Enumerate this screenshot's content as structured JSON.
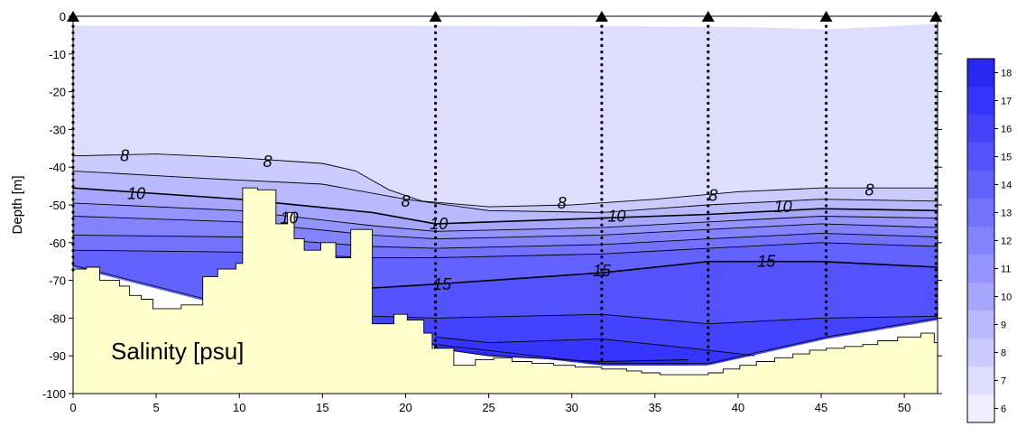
{
  "chart_data": {
    "type": "contour",
    "title": "",
    "panel_label": "Salinity [psu]",
    "xlabel": "",
    "ylabel": "Depth [m]",
    "xlim": [
      0,
      52
    ],
    "ylim": [
      -100,
      0
    ],
    "x_ticks": [
      0,
      5,
      10,
      15,
      20,
      25,
      30,
      35,
      40,
      45,
      50
    ],
    "y_ticks": [
      0,
      -10,
      -20,
      -30,
      -40,
      -50,
      -60,
      -70,
      -80,
      -90,
      -100
    ],
    "colors": {
      "bottom": "#FFFFCC",
      "outline": "#000000"
    },
    "colorbar": {
      "levels": [
        6,
        7,
        8,
        9,
        10,
        11,
        12,
        13,
        14,
        15,
        16,
        17,
        18
      ],
      "labels": [
        "6",
        "7",
        "8",
        "9",
        "10",
        "11",
        "12",
        "13",
        "14",
        "15",
        "16",
        "17",
        "18"
      ],
      "band_colors": [
        "#EEEEFF",
        "#DDDDFF",
        "#CBCBFF",
        "#B9B9FF",
        "#A6A6FF",
        "#9494FF",
        "#8383FF",
        "#7272FF",
        "#6262FF",
        "#5252FF",
        "#4343FF",
        "#3535FF",
        "#2828F0"
      ]
    },
    "stations": [
      {
        "x": 0,
        "bottom_depth": -68
      },
      {
        "x": 21.8,
        "bottom_depth": -89
      },
      {
        "x": 31.8,
        "bottom_depth": -92
      },
      {
        "x": 38.2,
        "bottom_depth": -92
      },
      {
        "x": 45.3,
        "bottom_depth": -85
      },
      {
        "x": 51.9,
        "bottom_depth": -80
      }
    ],
    "data_top": [
      [
        0,
        -2.5
      ],
      [
        10,
        -2.5
      ],
      [
        20,
        -2.5
      ],
      [
        30,
        -2.6
      ],
      [
        40,
        -2.8
      ],
      [
        45.3,
        -3.5
      ],
      [
        52,
        -2
      ]
    ],
    "data_lower_boundary": [
      [
        0,
        -66
      ],
      [
        8,
        -75
      ],
      [
        10,
        -76
      ],
      [
        21.8,
        -87
      ],
      [
        31.8,
        -92
      ],
      [
        38.2,
        -92
      ],
      [
        45.3,
        -85
      ],
      [
        52,
        -80
      ]
    ],
    "isohalines": [
      {
        "level": 8,
        "points": [
          [
            0,
            -37
          ],
          [
            5,
            -36.5
          ],
          [
            10,
            -37.5
          ],
          [
            15,
            -39
          ],
          [
            17,
            -41
          ],
          [
            19,
            -46
          ],
          [
            21,
            -49
          ],
          [
            25,
            -50.5
          ],
          [
            30,
            -50
          ],
          [
            35,
            -48.5
          ],
          [
            40,
            -46.5
          ],
          [
            45,
            -45.5
          ],
          [
            52,
            -45.5
          ]
        ]
      },
      {
        "level": 9,
        "points": [
          [
            0,
            -41
          ],
          [
            8,
            -43
          ],
          [
            15,
            -44.5
          ],
          [
            20,
            -48.5
          ],
          [
            25,
            -51.5
          ],
          [
            31.8,
            -52
          ],
          [
            38.2,
            -50
          ],
          [
            45,
            -48.5
          ],
          [
            52,
            -49
          ]
        ]
      },
      {
        "level": 10,
        "points": [
          [
            0,
            -45.5
          ],
          [
            10,
            -48.5
          ],
          [
            18,
            -52
          ],
          [
            21.8,
            -55
          ],
          [
            31.8,
            -53.5
          ],
          [
            38.2,
            -52.5
          ],
          [
            45,
            -51
          ],
          [
            52,
            -51.5
          ]
        ]
      },
      {
        "level": 11,
        "points": [
          [
            0,
            -49.5
          ],
          [
            10,
            -51.5
          ],
          [
            18,
            -55.5
          ],
          [
            21.8,
            -57
          ],
          [
            31.8,
            -56
          ],
          [
            38.2,
            -54.5
          ],
          [
            45,
            -53
          ],
          [
            52,
            -53.5
          ]
        ]
      },
      {
        "level": 12,
        "points": [
          [
            0,
            -53
          ],
          [
            10,
            -54.5
          ],
          [
            18,
            -58
          ],
          [
            21.8,
            -59
          ],
          [
            31.8,
            -58
          ],
          [
            38.2,
            -56.5
          ],
          [
            45,
            -55
          ],
          [
            52,
            -56
          ]
        ]
      },
      {
        "level": 13,
        "points": [
          [
            0,
            -58
          ],
          [
            10,
            -58.5
          ],
          [
            18,
            -61
          ],
          [
            21.8,
            -61.5
          ],
          [
            31.8,
            -60.5
          ],
          [
            38.2,
            -59
          ],
          [
            45,
            -57.5
          ],
          [
            52,
            -58.5
          ]
        ]
      },
      {
        "level": 14,
        "points": [
          [
            0,
            -62
          ],
          [
            10,
            -62.5
          ],
          [
            18,
            -64
          ],
          [
            21.8,
            -64
          ],
          [
            31.8,
            -63
          ],
          [
            38.2,
            -61.5
          ],
          [
            45,
            -60
          ],
          [
            52,
            -61
          ]
        ]
      },
      {
        "level": 15,
        "points": [
          [
            18,
            -72
          ],
          [
            21.8,
            -71
          ],
          [
            31.8,
            -68
          ],
          [
            38.2,
            -65
          ],
          [
            45,
            -65
          ],
          [
            52,
            -66.5
          ]
        ]
      },
      {
        "level": 16,
        "points": [
          [
            18,
            -79.5
          ],
          [
            21.8,
            -80
          ],
          [
            31.8,
            -79
          ],
          [
            38.2,
            -81.5
          ],
          [
            45,
            -80
          ],
          [
            52,
            -79.5
          ]
        ]
      },
      {
        "level": 17,
        "points": [
          [
            21.8,
            -85
          ],
          [
            25,
            -86.5
          ],
          [
            31.8,
            -85.5
          ],
          [
            38.2,
            -88.5
          ],
          [
            41,
            -90
          ]
        ]
      },
      {
        "level": 18,
        "points": [
          [
            21.8,
            -88
          ],
          [
            25,
            -90
          ],
          [
            31.8,
            -91.5
          ],
          [
            37,
            -91
          ]
        ]
      }
    ],
    "contour_labels": [
      {
        "text": "8",
        "x": 3.1,
        "y": -37
      },
      {
        "text": "8",
        "x": 11.7,
        "y": -38.5
      },
      {
        "text": "8",
        "x": 20,
        "y": -49
      },
      {
        "text": "8",
        "x": 29.4,
        "y": -49.5
      },
      {
        "text": "8",
        "x": 38.5,
        "y": -47.5
      },
      {
        "text": "8",
        "x": 47.9,
        "y": -46
      },
      {
        "text": "10",
        "x": 3.8,
        "y": -47
      },
      {
        "text": "10",
        "x": 13,
        "y": -53.5
      },
      {
        "text": "10",
        "x": 22,
        "y": -55
      },
      {
        "text": "10",
        "x": 32.7,
        "y": -53
      },
      {
        "text": "10",
        "x": 42.7,
        "y": -50.5
      },
      {
        "text": "15",
        "x": 22.2,
        "y": -71
      },
      {
        "text": "15",
        "x": 31.8,
        "y": -67.5
      },
      {
        "text": "15",
        "x": 41.7,
        "y": -65
      }
    ],
    "bathymetry": [
      [
        0,
        -67
      ],
      [
        0.8,
        -67
      ],
      [
        0.8,
        -66.5
      ],
      [
        1.6,
        -66.5
      ],
      [
        1.6,
        -70
      ],
      [
        2.8,
        -70
      ],
      [
        2.8,
        -71.5
      ],
      [
        3.4,
        -71.5
      ],
      [
        3.4,
        -74
      ],
      [
        4.1,
        -74
      ],
      [
        4.1,
        -75
      ],
      [
        4.8,
        -75
      ],
      [
        4.8,
        -77.5
      ],
      [
        6.5,
        -77.5
      ],
      [
        6.5,
        -76.5
      ],
      [
        7.8,
        -76.5
      ],
      [
        7.8,
        -69
      ],
      [
        8.7,
        -69
      ],
      [
        8.7,
        -67
      ],
      [
        9.8,
        -67
      ],
      [
        9.8,
        -65.5
      ],
      [
        10.2,
        -65.5
      ],
      [
        10.2,
        -45.5
      ],
      [
        11.1,
        -45.5
      ],
      [
        11.1,
        -46
      ],
      [
        12.2,
        -46
      ],
      [
        12.2,
        -55
      ],
      [
        12.9,
        -55
      ],
      [
        12.9,
        -52
      ],
      [
        13.3,
        -52
      ],
      [
        13.3,
        -59
      ],
      [
        13.9,
        -59
      ],
      [
        13.9,
        -62
      ],
      [
        14.9,
        -62
      ],
      [
        14.9,
        -60
      ],
      [
        15.8,
        -60
      ],
      [
        15.8,
        -64
      ],
      [
        16.7,
        -64
      ],
      [
        16.7,
        -56.5
      ],
      [
        18,
        -56.5
      ],
      [
        18,
        -81.5
      ],
      [
        19.3,
        -81.5
      ],
      [
        19.3,
        -79
      ],
      [
        20.1,
        -79
      ],
      [
        20.1,
        -80.5
      ],
      [
        21.1,
        -80.5
      ],
      [
        21.1,
        -84
      ],
      [
        21.6,
        -84
      ],
      [
        21.6,
        -88
      ],
      [
        22.9,
        -88
      ],
      [
        22.9,
        -92.5
      ],
      [
        24.2,
        -92.5
      ],
      [
        24.2,
        -91
      ],
      [
        25.3,
        -91
      ],
      [
        25.3,
        -90.5
      ],
      [
        26.4,
        -90.5
      ],
      [
        26.4,
        -91.5
      ],
      [
        27.6,
        -91.5
      ],
      [
        27.6,
        -92
      ],
      [
        28.9,
        -92
      ],
      [
        28.9,
        -92.5
      ],
      [
        30.2,
        -92.5
      ],
      [
        30.2,
        -93
      ],
      [
        31.8,
        -93
      ],
      [
        31.8,
        -93.5
      ],
      [
        33.3,
        -93.5
      ],
      [
        33.3,
        -94
      ],
      [
        34.2,
        -94
      ],
      [
        34.2,
        -94.5
      ],
      [
        35.3,
        -94.5
      ],
      [
        35.3,
        -95
      ],
      [
        38.2,
        -95
      ],
      [
        38.2,
        -94.5
      ],
      [
        39.1,
        -94.5
      ],
      [
        39.1,
        -93.5
      ],
      [
        40.1,
        -93.5
      ],
      [
        40.1,
        -92.5
      ],
      [
        41.1,
        -92.5
      ],
      [
        41.1,
        -91.5
      ],
      [
        42.2,
        -91.5
      ],
      [
        42.2,
        -90.5
      ],
      [
        43.3,
        -90.5
      ],
      [
        43.3,
        -89.5
      ],
      [
        44.3,
        -89.5
      ],
      [
        44.3,
        -88.5
      ],
      [
        45.3,
        -88.5
      ],
      [
        45.3,
        -88
      ],
      [
        46.4,
        -88
      ],
      [
        46.4,
        -87.5
      ],
      [
        47.5,
        -87.5
      ],
      [
        47.5,
        -87
      ],
      [
        48.4,
        -87
      ],
      [
        48.4,
        -86
      ],
      [
        49.6,
        -86
      ],
      [
        49.6,
        -85
      ],
      [
        51,
        -85
      ],
      [
        51,
        -84
      ],
      [
        51.8,
        -84
      ],
      [
        51.8,
        -86.5
      ],
      [
        52,
        -86.5
      ]
    ]
  }
}
